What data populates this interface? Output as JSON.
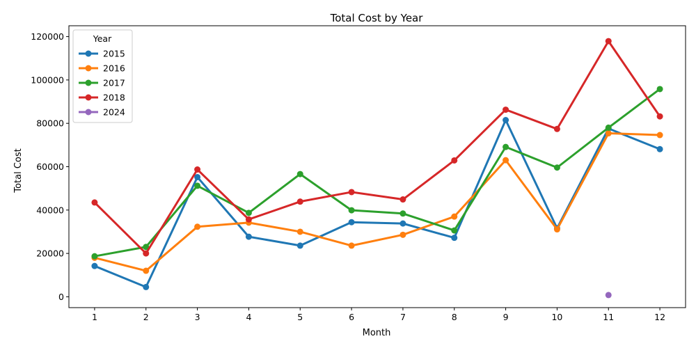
{
  "chart_data": {
    "type": "line",
    "title": "Total Cost by Year",
    "xlabel": "Month",
    "ylabel": "Total Cost",
    "x": [
      1,
      2,
      3,
      4,
      5,
      6,
      7,
      8,
      9,
      10,
      11,
      12
    ],
    "xlim": [
      0.5,
      12.5
    ],
    "ylim": [
      -5000,
      125000
    ],
    "yticks": [
      0,
      20000,
      40000,
      60000,
      80000,
      100000,
      120000
    ],
    "grid": false,
    "legend": {
      "title": "Year",
      "placement": "top-left"
    },
    "series": [
      {
        "name": "2015",
        "color": "#1f77b4",
        "x": [
          1,
          2,
          3,
          4,
          5,
          6,
          7,
          8,
          9,
          10,
          11,
          12
        ],
        "values": [
          14200,
          4500,
          55200,
          27700,
          23600,
          34400,
          33800,
          27200,
          81500,
          31600,
          77600,
          68100
        ]
      },
      {
        "name": "2016",
        "color": "#ff7f0e",
        "x": [
          1,
          2,
          3,
          4,
          5,
          6,
          7,
          8,
          9,
          10,
          11,
          12
        ],
        "values": [
          18000,
          12000,
          32300,
          34200,
          30000,
          23600,
          28600,
          37000,
          63000,
          31100,
          75400,
          74600
        ]
      },
      {
        "name": "2017",
        "color": "#2ca02c",
        "x": [
          1,
          2,
          3,
          4,
          5,
          6,
          7,
          8,
          9,
          10,
          11,
          12
        ],
        "values": [
          18700,
          23000,
          51200,
          38700,
          56600,
          39900,
          38400,
          30600,
          69100,
          59600,
          78000,
          95800
        ]
      },
      {
        "name": "2018",
        "color": "#d62728",
        "x": [
          1,
          2,
          3,
          4,
          5,
          6,
          7,
          8,
          9,
          10,
          11,
          12
        ],
        "values": [
          43500,
          20000,
          58700,
          35700,
          43900,
          48300,
          44900,
          62900,
          86300,
          77400,
          117900,
          83200
        ]
      },
      {
        "name": "2024",
        "color": "#9467bd",
        "x": [
          11
        ],
        "values": [
          800
        ]
      }
    ]
  }
}
